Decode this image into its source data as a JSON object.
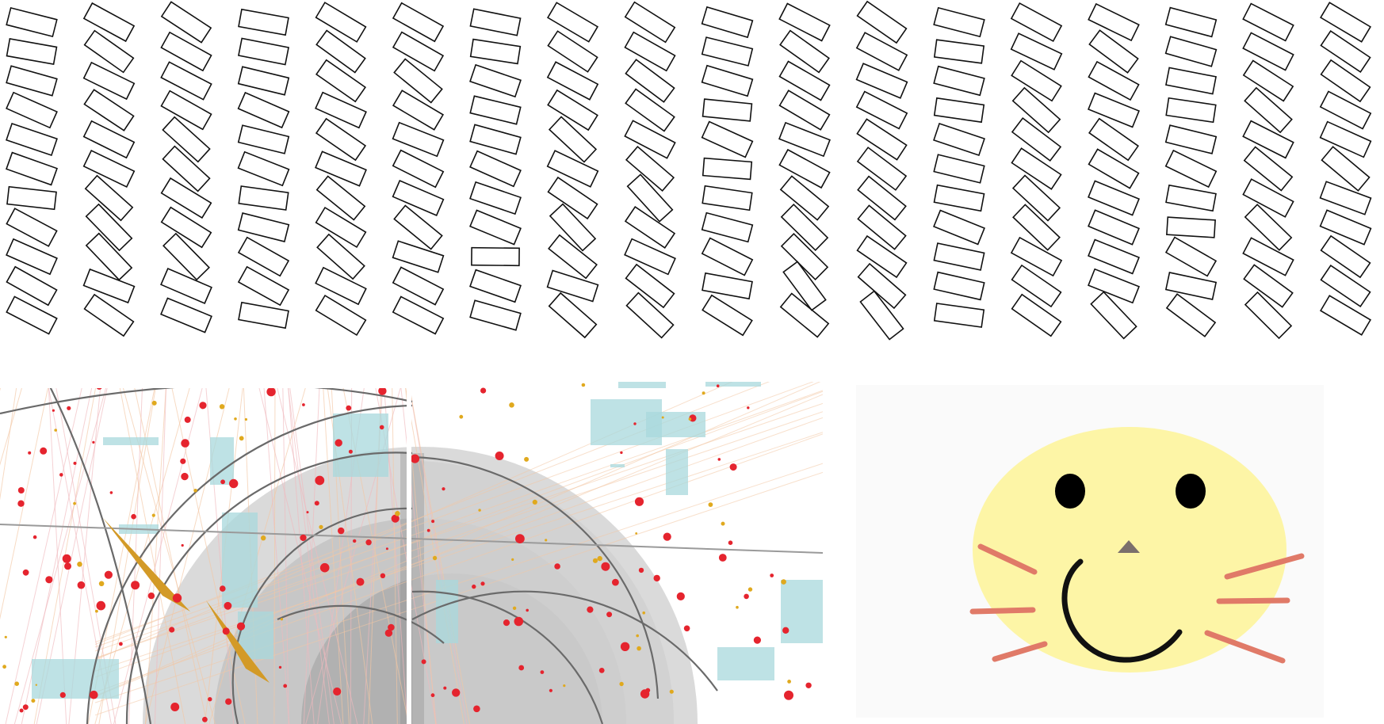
{
  "colors": {
    "background": "#ffffff",
    "rect_stroke": "#111111",
    "cat_card": "#fafafa",
    "cat_face": "#fdf5a6",
    "cat_eye": "#000000",
    "cat_nose": "#7a6f6c",
    "cat_smile": "#111111",
    "cat_whisker": "#e07a68",
    "dot_red": "#e5242e",
    "dot_gold": "#e0a91e",
    "teal_block": "#a8d8dc",
    "gray_arc": "#707070",
    "shard": "#d39a27"
  },
  "panels": [
    {
      "name": "rectangle-grid",
      "icon": "rectangles-artwork"
    },
    {
      "name": "abstract-composition",
      "icon": "abstract-artwork"
    },
    {
      "name": "cat-face",
      "icon": "cat-face-icon"
    }
  ]
}
